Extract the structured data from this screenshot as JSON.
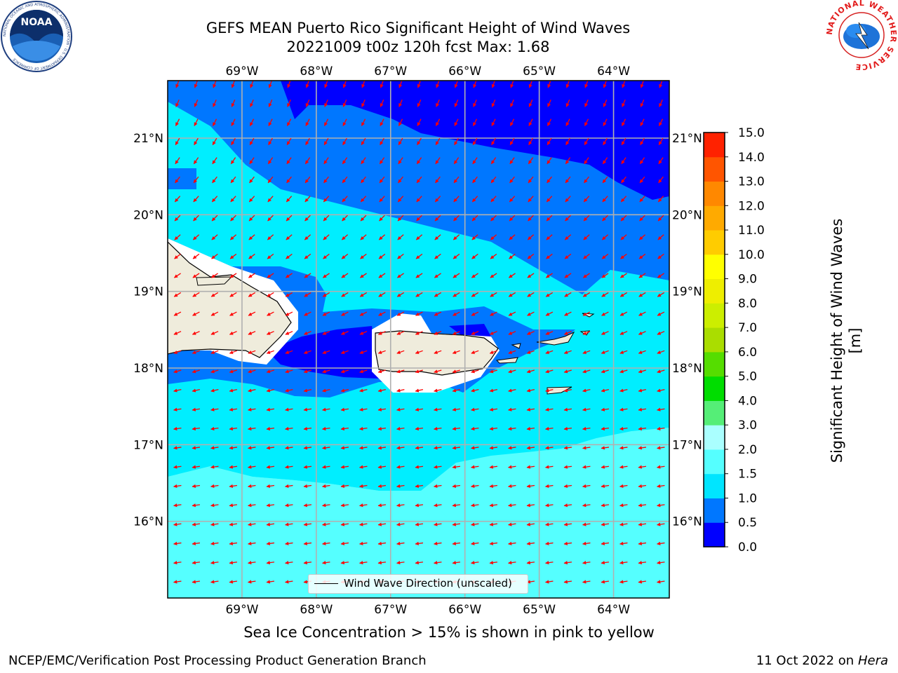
{
  "title_line1": "GEFS MEAN Puerto Rico Significant Height of Wind Waves",
  "title_line2": "20221009 t00z 120h fcst   Max: 1.68",
  "map": {
    "lon_range": [
      -70.0,
      -63.25
    ],
    "lat_range": [
      15.0,
      21.75
    ],
    "lon_ticks": [
      {
        "value": -69,
        "label": "69°W"
      },
      {
        "value": -68,
        "label": "68°W"
      },
      {
        "value": -67,
        "label": "67°W"
      },
      {
        "value": -66,
        "label": "66°W"
      },
      {
        "value": -65,
        "label": "65°W"
      },
      {
        "value": -64,
        "label": "64°W"
      }
    ],
    "lat_ticks": [
      {
        "value": 21,
        "label": "21°N"
      },
      {
        "value": 20,
        "label": "20°N"
      },
      {
        "value": 19,
        "label": "19°N"
      },
      {
        "value": 18,
        "label": "18°N"
      },
      {
        "value": 17,
        "label": "17°N"
      },
      {
        "value": 16,
        "label": "16°N"
      }
    ],
    "grid": true,
    "land_color": "#efecdc",
    "arrow_color": "#ff0000"
  },
  "legend_label": "Wind Wave Direction (unscaled)",
  "colorbar": {
    "title": "Significant Height of Wind Waves [m]",
    "levels": [
      0.0,
      0.5,
      1.0,
      1.5,
      2.0,
      3.0,
      4.0,
      5.0,
      6.0,
      7.0,
      8.0,
      9.0,
      10.0,
      11.0,
      12.0,
      13.0,
      14.0,
      15.0
    ],
    "level_labels": [
      "0.0",
      "0.5",
      "1.0",
      "1.5",
      "2.0",
      "3.0",
      "4.0",
      "5.0",
      "6.0",
      "7.0",
      "8.0",
      "9.0",
      "10.0",
      "11.0",
      "12.0",
      "13.0",
      "14.0",
      "15.0"
    ],
    "colors": [
      "#0000ff",
      "#0077ff",
      "#00e5ff",
      "#55ffff",
      "#aaffff",
      "#55ee77",
      "#00dd00",
      "#55dd00",
      "#aadd00",
      "#ccee00",
      "#eeee00",
      "#ffff00",
      "#ffcc00",
      "#ffaa00",
      "#ff8800",
      "#ff5500",
      "#ff2200"
    ]
  },
  "sea_ice_note": "Sea Ice Concentration > 15% is shown in pink to yellow",
  "footer_left": "NCEP/EMC/Verification Post Processing Product Generation Branch",
  "footer_right_prefix": "11 Oct 2022 on ",
  "footer_right_host": "Hera",
  "logos": {
    "left_text": "NOAA",
    "left_ring": "NATIONAL OCEANIC AND ATMOSPHERIC ADMINISTRATION · U.S. DEPARTMENT OF COMMERCE",
    "right_ring": "NATIONAL WEATHER SERVICE"
  }
}
